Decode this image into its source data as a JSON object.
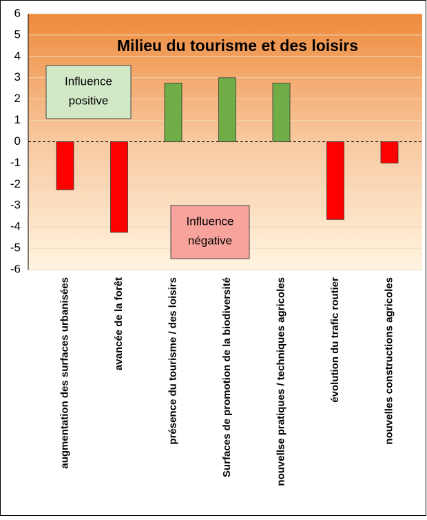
{
  "chart_data": {
    "type": "bar",
    "title": "Milieu du tourisme et des loisirs",
    "categories": [
      "augmentation des surfaces urbanisées",
      "avancée de la forêt",
      "présence du tourisme / des loisirs",
      "Surfaces de promotion de la biodiversité",
      "nouvellse pratiques / techniques agricoles",
      "évolution du trafic routier",
      "nouvelles constructions agricoles"
    ],
    "values": [
      -2.25,
      -4.25,
      2.75,
      3,
      2.75,
      -3.65,
      -1
    ],
    "positive_color": "#70ad47",
    "negative_color": "#ff0000",
    "ylim": [
      -6,
      6
    ],
    "yticks": [
      -6,
      -5,
      -4,
      -3,
      -2,
      -1,
      0,
      1,
      2,
      3,
      4,
      5,
      6
    ],
    "grid": true,
    "annotations": [
      {
        "lines": [
          "Influence",
          "positive"
        ],
        "color": "#d3e8c6"
      },
      {
        "lines": [
          "Influence",
          "négative"
        ],
        "color": "#f8a39c"
      }
    ]
  }
}
